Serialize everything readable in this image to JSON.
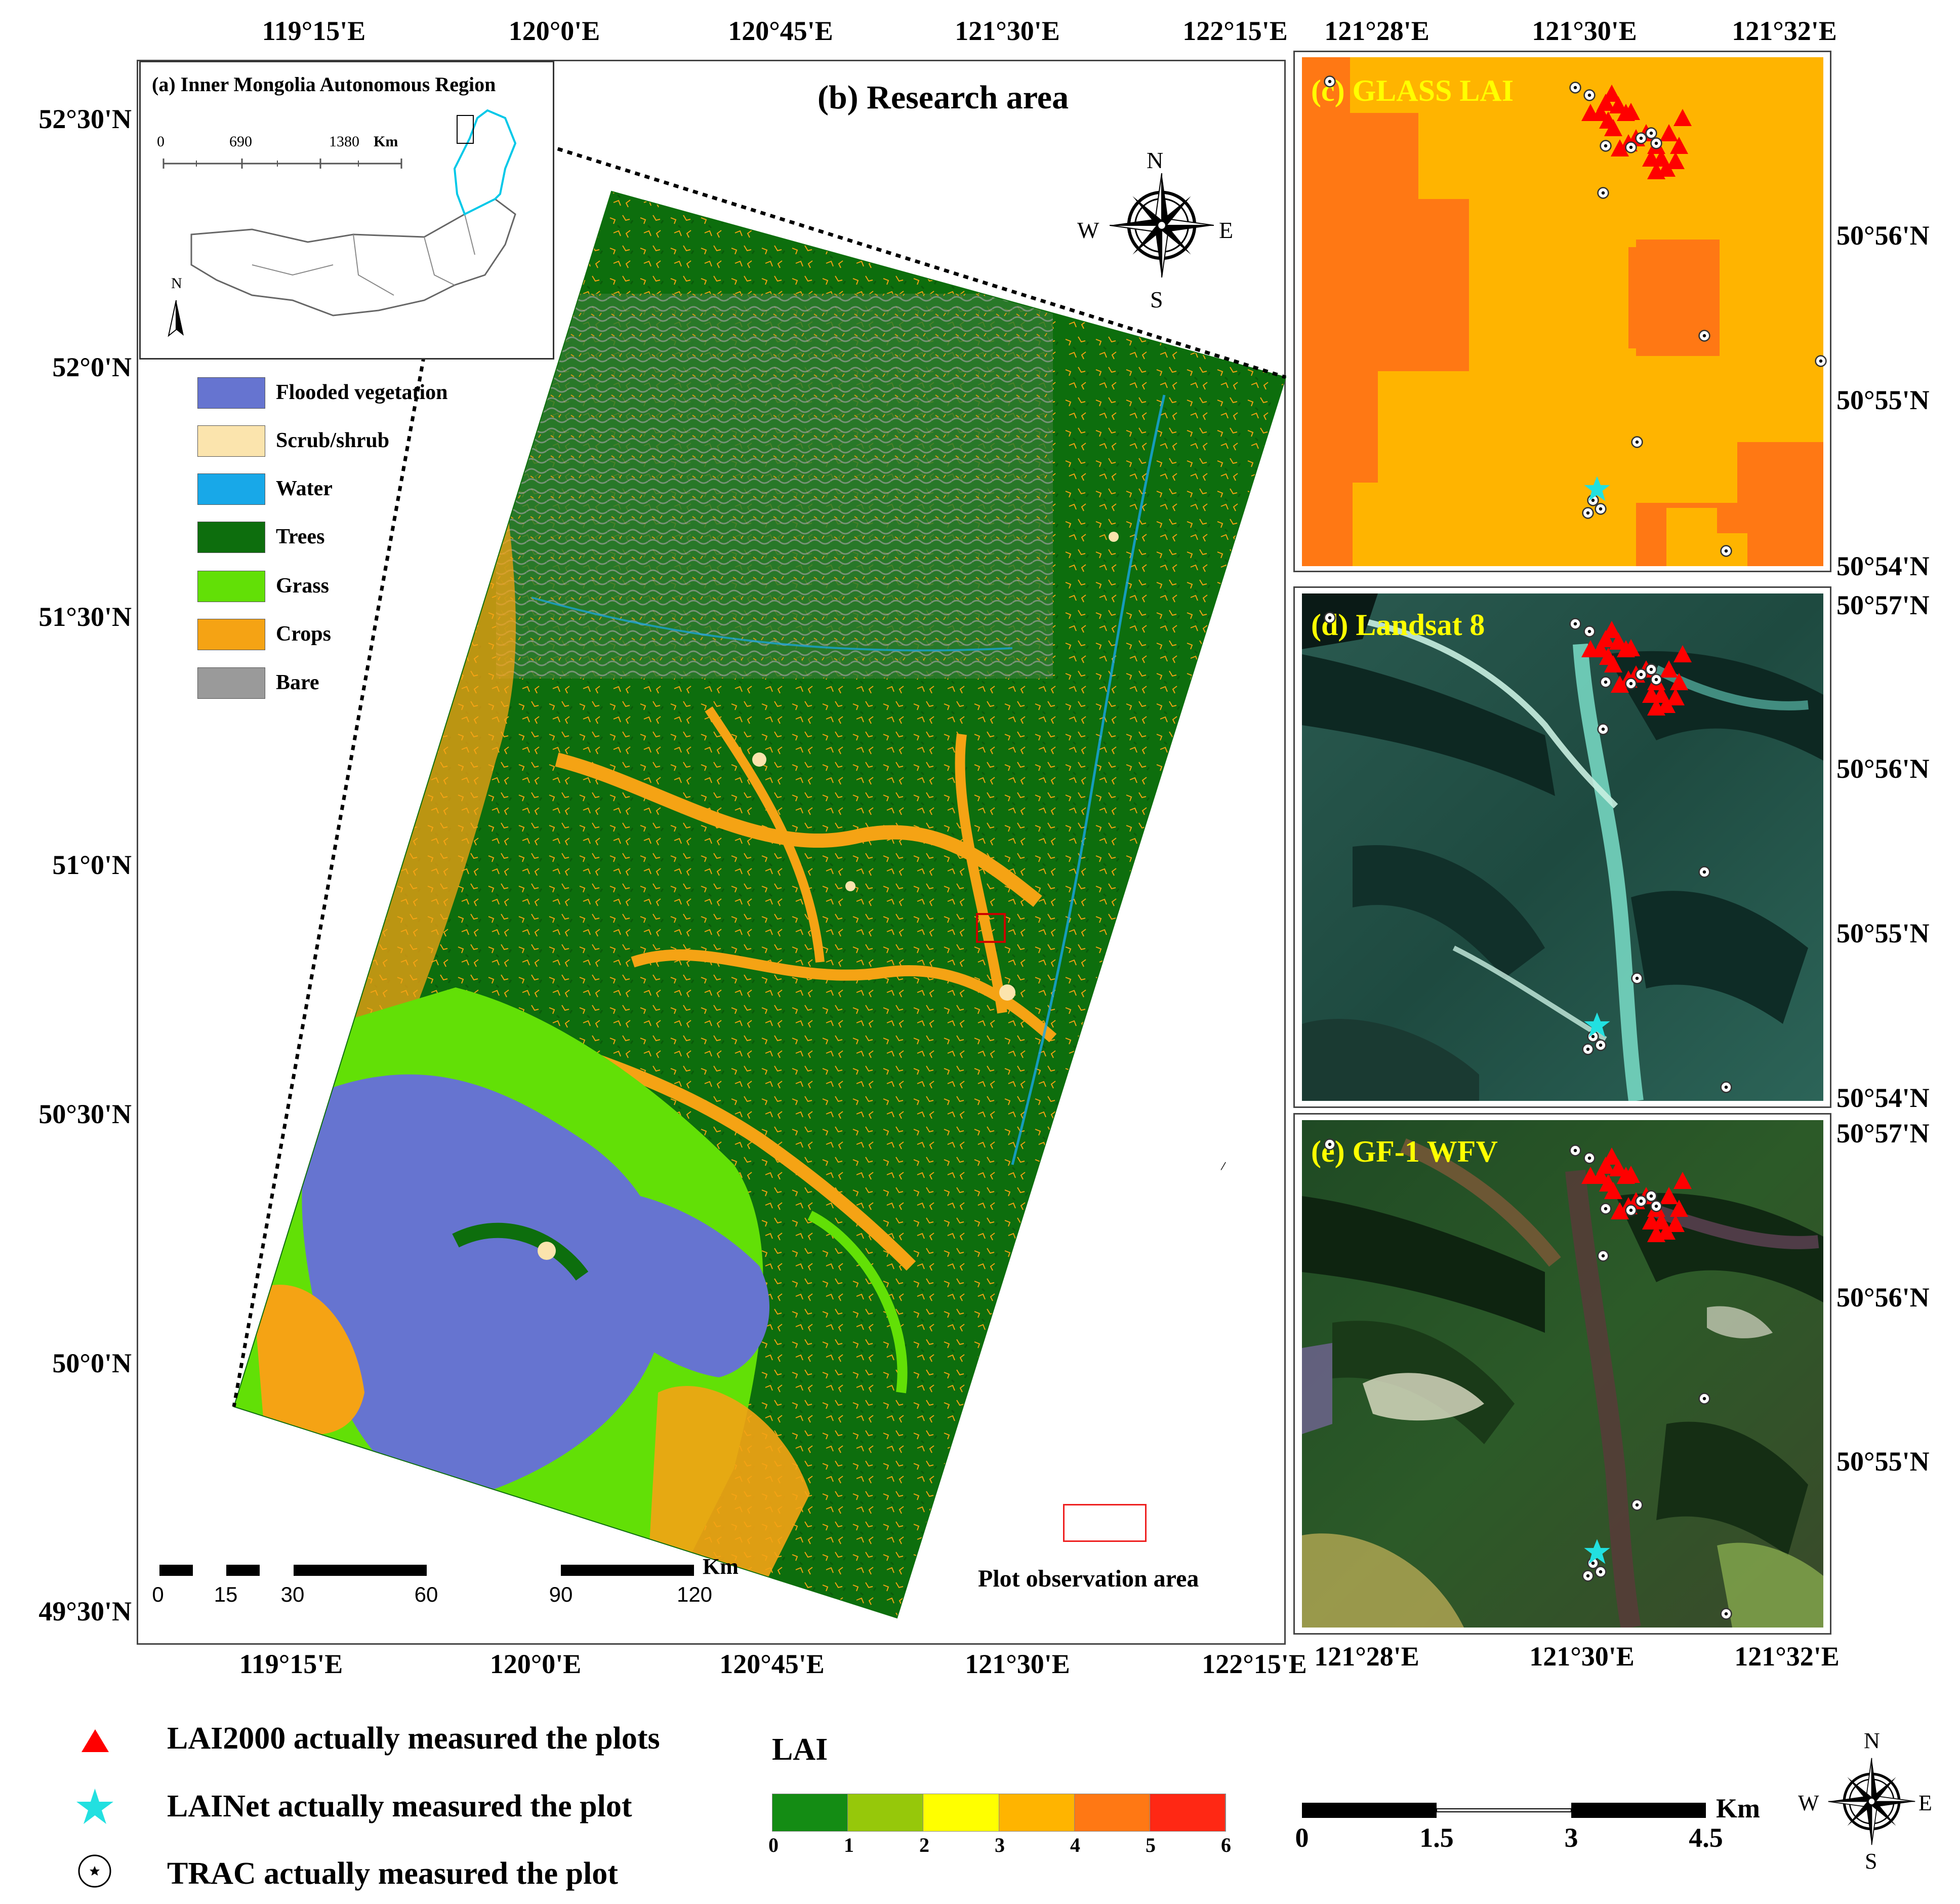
{
  "main_map": {
    "title": "(b)  Research area",
    "top_lon_labels": [
      "119°15'E",
      "120°0'E",
      "120°45'E",
      "121°30'E",
      "122°15'E"
    ],
    "bottom_lon_labels": [
      "119°15'E",
      "120°0'E",
      "120°45'E",
      "121°30'E",
      "122°15'E"
    ],
    "lat_labels": [
      "52°30'N",
      "52°0'N",
      "51°30'N",
      "51°0'N",
      "50°30'N",
      "50°0'N",
      "49°30'N"
    ],
    "scalebar_labels": [
      "0",
      "15",
      "30",
      "60",
      "90",
      "120"
    ],
    "scalebar_unit": "Km",
    "plot_area_label": "Plot observation area",
    "compass": {
      "n": "N",
      "s": "S",
      "e": "E",
      "w": "W"
    }
  },
  "inset": {
    "title": "(a) Inner Mongolia Autonomous Region",
    "scale_labels": [
      "0",
      "690",
      "1380"
    ],
    "scale_unit": "Km",
    "north_label": "N",
    "outline_color": "#00c8e8"
  },
  "land_cover_legend": [
    {
      "label": "Flooded vegetation",
      "color": "#6674d0"
    },
    {
      "label": "Scrub/shrub",
      "color": "#fbe4ad"
    },
    {
      "label": "Water",
      "color": "#18a8e8"
    },
    {
      "label": "Trees",
      "color": "#0d6e0d"
    },
    {
      "label": "Grass",
      "color": "#62e006"
    },
    {
      "label": "Crops",
      "color": "#f5a314"
    },
    {
      "label": "Bare",
      "color": "#9a9a9a"
    }
  ],
  "panels": {
    "c": {
      "label": "(c) GLASS LAI"
    },
    "d": {
      "label": "(d)  Landsat 8"
    },
    "e": {
      "label": "(e)  GF-1 WFV"
    },
    "top_lon_labels": [
      "121°28'E",
      "121°30'E",
      "121°32'E"
    ],
    "bottom_lon_labels": [
      "121°28'E",
      "121°30'E",
      "121°32'E"
    ],
    "c_lat_labels": [
      "50°56'N",
      "50°55'N",
      "50°54'N"
    ],
    "d_lat_labels": [
      "50°57'N",
      "50°56'N",
      "50°55'N",
      "50°54'N"
    ],
    "e_lat_labels": [
      "50°57'N",
      "50°56'N",
      "50°55'N"
    ]
  },
  "bottom_legend": {
    "lai2000": "LAI2000 actually measured the plots",
    "lainet": "LAINet actually measured the plot",
    "trac": "TRAC actually measured the plot",
    "lai_title": "LAI",
    "lai_ticks": [
      "0",
      "1",
      "2",
      "3",
      "4",
      "5",
      "6"
    ],
    "lai_colors": [
      "#148c14",
      "#96c80a",
      "#ffff00",
      "#ffb400",
      "#ff7814",
      "#ff2814"
    ],
    "km_labels": [
      "0",
      "1.5",
      "3",
      "4.5"
    ],
    "km_unit": "Km",
    "compass": {
      "n": "N",
      "s": "S",
      "e": "E",
      "w": "W"
    }
  }
}
